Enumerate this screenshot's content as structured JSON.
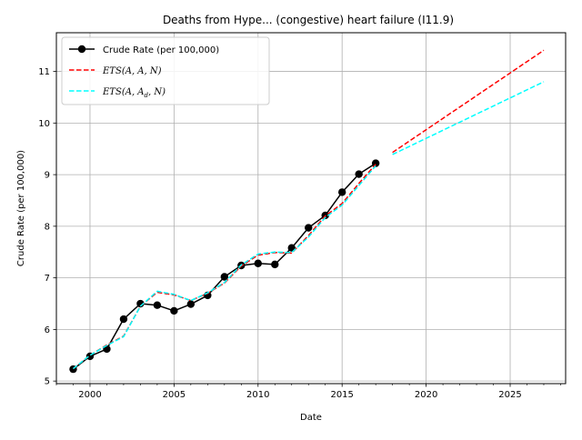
{
  "chart_data": {
    "type": "line",
    "title": "Deaths from Hype... (congestive) heart failure (I11.9)",
    "xlabel": "Date",
    "ylabel": "Crude Rate (per 100,000)",
    "xlim": [
      1998.0,
      2028.3
    ],
    "ylim": [
      4.95,
      11.75
    ],
    "x_ticks": [
      2000,
      2005,
      2010,
      2015,
      2020,
      2025
    ],
    "y_ticks": [
      5,
      6,
      7,
      8,
      9,
      10,
      11
    ],
    "grid": true,
    "legend_position": "top-left",
    "series": [
      {
        "name": "Crude Rate (per 100,000)",
        "color": "#000000",
        "style": "solid-markers",
        "x": [
          1999,
          2000,
          2001,
          2002,
          2003,
          2004,
          2005,
          2006,
          2007,
          2008,
          2009,
          2010,
          2011,
          2012,
          2013,
          2014,
          2015,
          2016,
          2017
        ],
        "y": [
          5.23,
          5.48,
          5.62,
          6.2,
          6.5,
          6.47,
          6.36,
          6.49,
          6.66,
          7.02,
          7.24,
          7.28,
          7.26,
          7.58,
          7.97,
          8.21,
          8.66,
          9.01,
          9.22
        ]
      },
      {
        "name": "ETS(A, A, N)",
        "color": "#ff0000",
        "style": "dashed",
        "x": [
          1999,
          2000,
          2001,
          2002,
          2003,
          2004,
          2005,
          2006,
          2007,
          2008,
          2009,
          2010,
          2011,
          2012,
          2013,
          2014,
          2015,
          2016,
          2017
        ],
        "y": [
          5.24,
          5.5,
          5.7,
          5.87,
          6.45,
          6.72,
          6.67,
          6.56,
          6.7,
          6.9,
          7.23,
          7.44,
          7.49,
          7.48,
          7.82,
          8.2,
          8.44,
          8.83,
          9.2
        ]
      },
      {
        "name": "ETS(A, A, N)",
        "color": "#ff0000",
        "style": "dashed",
        "x": [
          2018,
          2027
        ],
        "y": [
          9.43,
          11.41
        ]
      },
      {
        "name": "ETS(A, A_d, N)",
        "color": "#00ffff",
        "style": "dashed",
        "x": [
          1999,
          2000,
          2001,
          2002,
          2003,
          2004,
          2005,
          2006,
          2007,
          2008,
          2009,
          2010,
          2011,
          2012,
          2013,
          2014,
          2015,
          2016,
          2017
        ],
        "y": [
          5.24,
          5.5,
          5.69,
          5.86,
          6.45,
          6.74,
          6.68,
          6.56,
          6.71,
          6.91,
          7.25,
          7.46,
          7.5,
          7.49,
          7.79,
          8.17,
          8.41,
          8.79,
          9.17
        ]
      },
      {
        "name": "ETS(A, A_d, N)",
        "color": "#00ffff",
        "style": "dashed",
        "x": [
          2018,
          2027
        ],
        "y": [
          9.39,
          10.8
        ]
      }
    ],
    "legend": [
      {
        "label": "Crude Rate (per 100,000)",
        "color": "#000000",
        "style": "solid-markers"
      },
      {
        "label_prefix": "ETS",
        "label_args": "(A, A, N)",
        "color": "#ff0000",
        "style": "dashed"
      },
      {
        "label_prefix": "ETS",
        "label_args": "(A, A",
        "label_sub": "d",
        "label_suffix": ", N)",
        "color": "#00ffff",
        "style": "dashed"
      }
    ]
  }
}
